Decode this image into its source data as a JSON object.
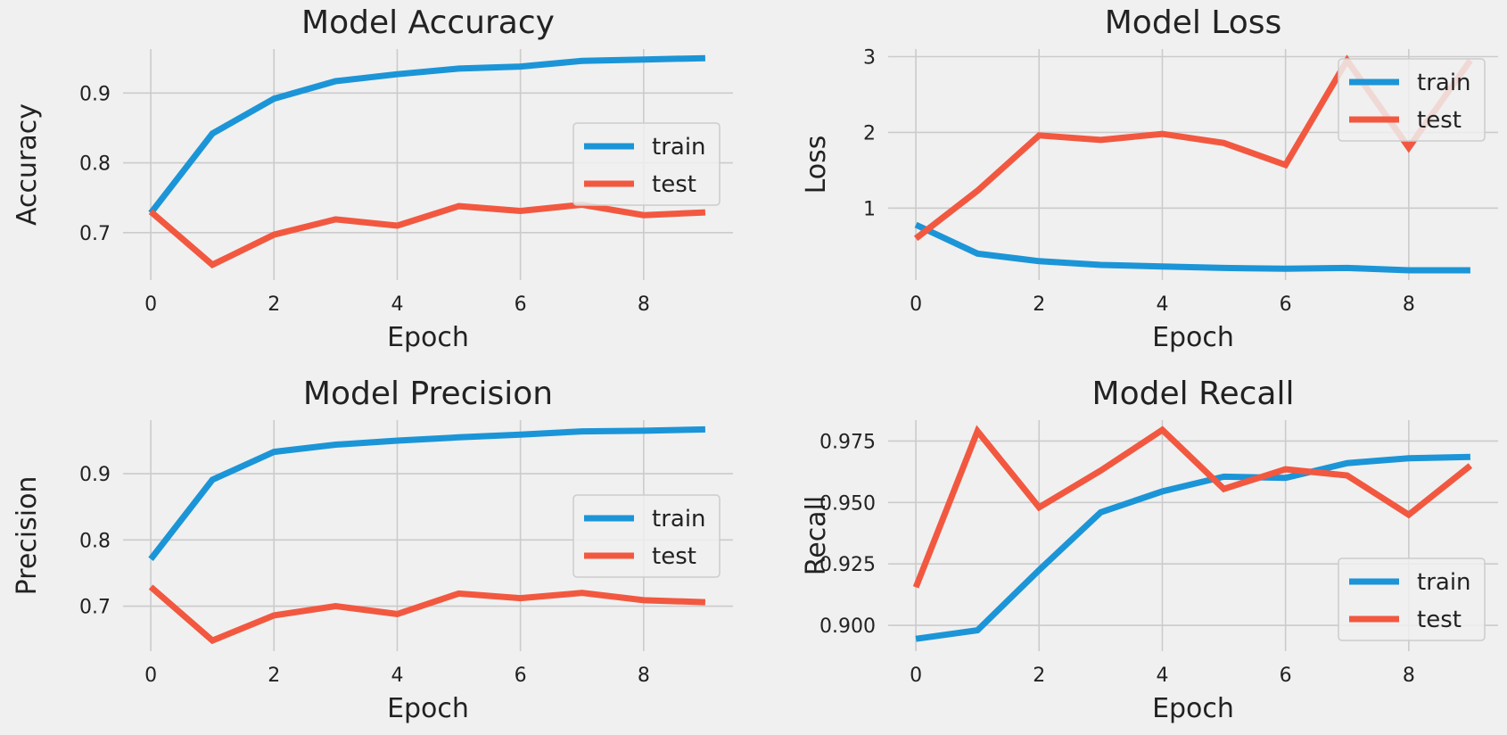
{
  "colors": {
    "background": "#f0f0f0",
    "grid": "#cbcbcb",
    "text": "#222222",
    "train": "#1b95d7",
    "test": "#f25840",
    "legend_bg": "#f0f0f0",
    "legend_border": "#cccccc"
  },
  "chart_data": [
    {
      "type": "line",
      "title": "Model Accuracy",
      "xlabel": "Epoch",
      "ylabel": "Accuracy",
      "x": [
        0,
        1,
        2,
        3,
        4,
        5,
        6,
        7,
        8,
        9
      ],
      "xlim": [
        -0.45,
        9.45
      ],
      "ylim": [
        0.632,
        0.963
      ],
      "xticks": [
        0,
        2,
        4,
        6,
        8
      ],
      "xtick_labels": [
        "0",
        "2",
        "4",
        "6",
        "8"
      ],
      "yticks": [
        0.7,
        0.8,
        0.9
      ],
      "ytick_labels": [
        "0.7",
        "0.8",
        "0.9"
      ],
      "grid": true,
      "legend": "center-right",
      "series": [
        {
          "name": "train",
          "color_key": "train",
          "values": [
            0.728,
            0.842,
            0.892,
            0.917,
            0.927,
            0.935,
            0.938,
            0.946,
            0.948,
            0.95
          ]
        },
        {
          "name": "test",
          "color_key": "test",
          "values": [
            0.73,
            0.654,
            0.697,
            0.719,
            0.71,
            0.738,
            0.731,
            0.74,
            0.725,
            0.729
          ]
        }
      ]
    },
    {
      "type": "line",
      "title": "Model Loss",
      "xlabel": "Epoch",
      "ylabel": "Loss",
      "x": [
        0,
        1,
        2,
        3,
        4,
        5,
        6,
        7,
        8,
        9
      ],
      "xlim": [
        -0.45,
        9.45
      ],
      "ylim": [
        0.05,
        3.1
      ],
      "xticks": [
        0,
        2,
        4,
        6,
        8
      ],
      "xtick_labels": [
        "0",
        "2",
        "4",
        "6",
        "8"
      ],
      "yticks": [
        1,
        2,
        3
      ],
      "ytick_labels": [
        "1",
        "2",
        "3"
      ],
      "grid": true,
      "legend": "upper-right",
      "series": [
        {
          "name": "train",
          "color_key": "train",
          "values": [
            0.78,
            0.4,
            0.3,
            0.25,
            0.23,
            0.21,
            0.2,
            0.21,
            0.18,
            0.18
          ]
        },
        {
          "name": "test",
          "color_key": "test",
          "values": [
            0.6,
            1.23,
            1.96,
            1.9,
            1.98,
            1.86,
            1.57,
            2.95,
            1.8,
            2.95
          ]
        }
      ]
    },
    {
      "type": "line",
      "title": "Model Precision",
      "xlabel": "Epoch",
      "ylabel": "Precision",
      "x": [
        0,
        1,
        2,
        3,
        4,
        5,
        6,
        7,
        8,
        9
      ],
      "xlim": [
        -0.45,
        9.45
      ],
      "ylim": [
        0.632,
        0.981
      ],
      "xticks": [
        0,
        2,
        4,
        6,
        8
      ],
      "xtick_labels": [
        "0",
        "2",
        "4",
        "6",
        "8"
      ],
      "yticks": [
        0.7,
        0.8,
        0.9
      ],
      "ytick_labels": [
        "0.7",
        "0.8",
        "0.9"
      ],
      "grid": true,
      "legend": "center-right",
      "series": [
        {
          "name": "train",
          "color_key": "train",
          "values": [
            0.771,
            0.891,
            0.933,
            0.944,
            0.95,
            0.955,
            0.959,
            0.964,
            0.965,
            0.967
          ]
        },
        {
          "name": "test",
          "color_key": "test",
          "values": [
            0.729,
            0.648,
            0.686,
            0.7,
            0.688,
            0.719,
            0.712,
            0.72,
            0.709,
            0.706
          ]
        }
      ]
    },
    {
      "type": "line",
      "title": "Model Recall",
      "xlabel": "Epoch",
      "ylabel": "Recall",
      "x": [
        0,
        1,
        2,
        3,
        4,
        5,
        6,
        7,
        8,
        9
      ],
      "xlim": [
        -0.45,
        9.45
      ],
      "ylim": [
        0.8895,
        0.9835
      ],
      "xticks": [
        0,
        2,
        4,
        6,
        8
      ],
      "xtick_labels": [
        "0",
        "2",
        "4",
        "6",
        "8"
      ],
      "yticks": [
        0.9,
        0.925,
        0.95,
        0.975
      ],
      "ytick_labels": [
        "0.900",
        "0.925",
        "0.950",
        "0.975"
      ],
      "grid": true,
      "legend": "lower-right",
      "series": [
        {
          "name": "train",
          "color_key": "train",
          "values": [
            0.8945,
            0.898,
            0.9225,
            0.946,
            0.9545,
            0.9605,
            0.96,
            0.966,
            0.968,
            0.9685
          ]
        },
        {
          "name": "test",
          "color_key": "test",
          "values": [
            0.9155,
            0.979,
            0.948,
            0.963,
            0.9795,
            0.9555,
            0.9635,
            0.961,
            0.945,
            0.965
          ]
        }
      ]
    }
  ]
}
